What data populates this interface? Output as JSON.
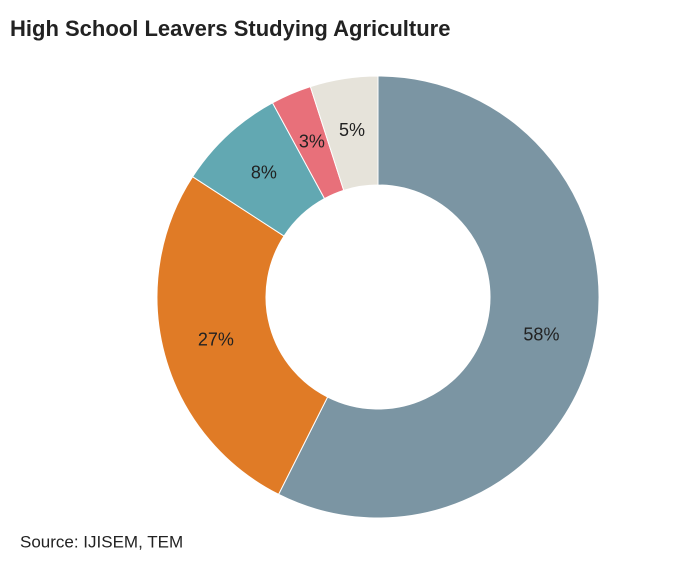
{
  "chart_data": {
    "type": "donut",
    "title": "High School Leavers Studying Agriculture",
    "values": [
      58,
      27,
      8,
      3,
      5
    ],
    "value_labels": [
      "58%",
      "27%",
      "8%",
      "3%",
      "5%"
    ],
    "colors": [
      "#7b95a3",
      "#e07b26",
      "#62a8b2",
      "#e8707a",
      "#e6e3da"
    ],
    "source": "Source: IJISEM, TEM"
  }
}
